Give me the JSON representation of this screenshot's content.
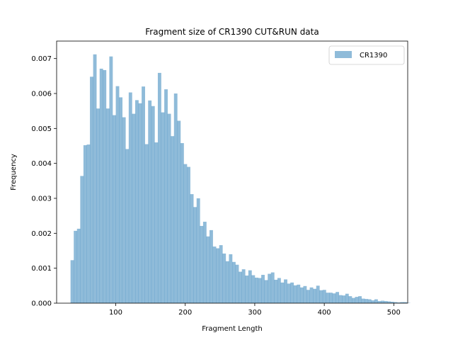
{
  "chart_data": {
    "type": "bar",
    "title": "Fragment size of CR1390 CUT&RUN data",
    "xlabel": "Fragment Length",
    "ylabel": "Frequency",
    "xlim": [
      15,
      520
    ],
    "ylim": [
      0,
      0.0075
    ],
    "xticks": [
      100,
      200,
      300,
      400,
      500
    ],
    "yticks": [
      0.0,
      0.001,
      0.002,
      0.003,
      0.004,
      0.005,
      0.006,
      0.007
    ],
    "yticks_labels": [
      "0.000",
      "0.001",
      "0.002",
      "0.003",
      "0.004",
      "0.005",
      "0.006",
      "0.007"
    ],
    "legend_position": "upper right",
    "series": [
      {
        "name": "CR1390",
        "color": "#1f77b4",
        "alpha": 0.5,
        "bin_start": 35,
        "bin_width": 4.65,
        "values": [
          0.00123,
          0.00207,
          0.00213,
          0.00364,
          0.00452,
          0.00454,
          0.00648,
          0.00712,
          0.00557,
          0.00671,
          0.00667,
          0.00557,
          0.00706,
          0.00538,
          0.00621,
          0.00589,
          0.00532,
          0.00441,
          0.00603,
          0.00542,
          0.00581,
          0.00572,
          0.0062,
          0.00455,
          0.0058,
          0.00564,
          0.0046,
          0.00659,
          0.00546,
          0.00612,
          0.00542,
          0.00478,
          0.006,
          0.00522,
          0.00458,
          0.00398,
          0.0039,
          0.00312,
          0.00275,
          0.003,
          0.00221,
          0.00233,
          0.00191,
          0.00209,
          0.00162,
          0.00157,
          0.00166,
          0.00142,
          0.0012,
          0.0014,
          0.00118,
          0.0011,
          0.0009,
          0.00097,
          0.00079,
          0.00094,
          0.0008,
          0.00073,
          0.00072,
          0.00081,
          0.00066,
          0.00084,
          0.00088,
          0.00067,
          0.00072,
          0.00059,
          0.00068,
          0.00056,
          0.00059,
          0.00051,
          0.00053,
          0.00045,
          0.00049,
          0.00038,
          0.00045,
          0.00041,
          0.0005,
          0.00037,
          0.00038,
          0.0003,
          0.0003,
          0.00028,
          0.00032,
          0.00023,
          0.00022,
          0.00027,
          0.0002,
          0.00015,
          0.00018,
          0.0002,
          0.00013,
          0.00012,
          0.00011,
          8e-05,
          0.00011,
          6e-05,
          7e-05,
          6e-05,
          5e-05,
          4e-05,
          3e-05,
          2e-05,
          3e-05,
          3e-05,
          1e-05
        ]
      }
    ]
  }
}
